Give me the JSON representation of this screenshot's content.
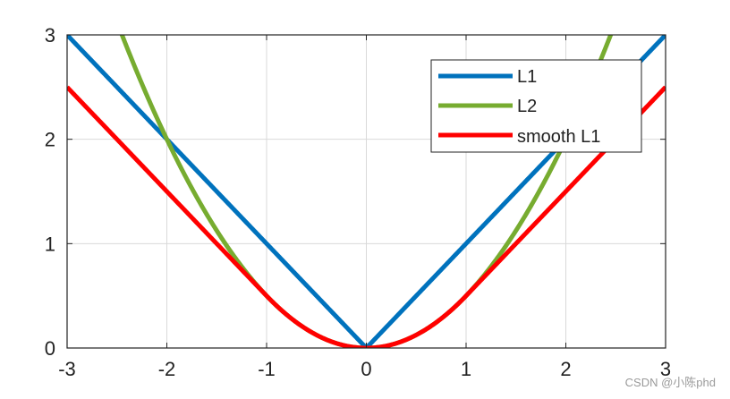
{
  "chart_data": {
    "type": "line",
    "x_range": [
      -3,
      3
    ],
    "ylim": [
      0,
      3
    ],
    "x_ticks": [
      -3,
      -2,
      -1,
      0,
      1,
      2,
      3
    ],
    "y_ticks": [
      0,
      1,
      2,
      3
    ],
    "x_tick_labels": [
      "-3",
      "-2",
      "-1",
      "0",
      "1",
      "2",
      "3"
    ],
    "y_tick_labels": [
      "0",
      "1",
      "2",
      "3"
    ],
    "grid": true,
    "legend_position": "top-right",
    "series": [
      {
        "name": "L1",
        "function": "|x|",
        "color": "#0072bd"
      },
      {
        "name": "L2",
        "function": "x^2 / 2",
        "color": "#77ac30"
      },
      {
        "name": "smooth L1",
        "function": "0.5*x^2 if |x|<1 else |x|-0.5",
        "color": "#ff0000"
      }
    ]
  },
  "watermark": "CSDN @小陈phd"
}
